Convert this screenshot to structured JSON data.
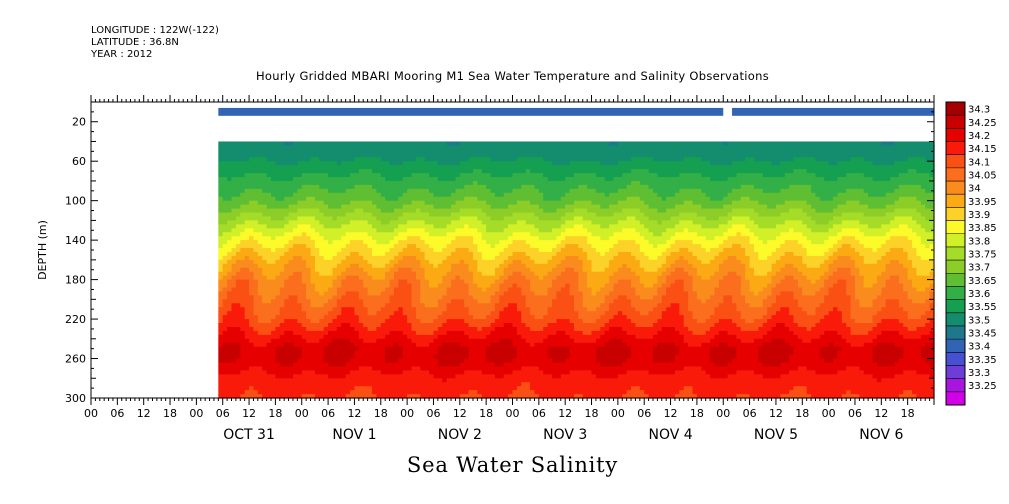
{
  "header": {
    "longitude": "LONGITUDE : 122W(-122)",
    "latitude": "LATITUDE : 36.8N",
    "year": "YEAR : 2012"
  },
  "footer": {
    "variable": "Sea Water Salinity"
  },
  "colors": {
    "missing": "#ffffff",
    "surface_band": "#3b5fc9"
  },
  "chart_data": {
    "type": "heatmap",
    "title": "Hourly Gridded MBARI Mooring M1 Sea Water Temperature and Salinity Observations",
    "xlabel": "",
    "ylabel": "DEPTH (m)",
    "x_range": [
      "2012-10-30 00:00",
      "2012-11-06 23:00"
    ],
    "y_range": [
      300,
      0
    ],
    "y_ticks": [
      20,
      60,
      100,
      140,
      180,
      220,
      260,
      300
    ],
    "hour_ticks": [
      "00",
      "06",
      "12",
      "18",
      "00",
      "06",
      "12",
      "18",
      "00",
      "06",
      "12",
      "18",
      "00",
      "06",
      "12",
      "18",
      "00",
      "06",
      "12",
      "18",
      "00",
      "06",
      "12",
      "18",
      "00",
      "06",
      "12",
      "18",
      "00",
      "06",
      "12",
      "18"
    ],
    "day_labels": [
      "OCT 31",
      "NOV  1",
      "NOV  2",
      "NOV  3",
      "NOV  4",
      "NOV  5",
      "NOV  6"
    ],
    "data_start": "2012-10-31 05:00",
    "data_end": "2012-11-06 23:00",
    "surface_depth_range": [
      6,
      14
    ],
    "surface_value": 33.4,
    "surface_gap": [
      "2012-11-05 00:00",
      "2012-11-05 02:00"
    ],
    "missing_depth_range": [
      14,
      40
    ],
    "profile_depths": [
      40,
      60,
      80,
      100,
      120,
      140,
      160,
      180,
      200,
      220,
      230,
      240,
      250,
      260,
      270,
      280,
      300
    ],
    "profile_values": [
      33.5,
      33.55,
      33.62,
      33.68,
      33.78,
      33.88,
      33.96,
      34.03,
      34.08,
      34.13,
      34.17,
      34.21,
      34.25,
      34.25,
      34.22,
      34.18,
      34.15
    ],
    "colorbar": {
      "levels": [
        "34.3",
        "34.25",
        "34.2",
        "34.15",
        "34.1",
        "34.05",
        "34",
        "33.95",
        "33.9",
        "33.85",
        "33.8",
        "33.75",
        "33.7",
        "33.65",
        "33.6",
        "33.55",
        "33.5",
        "33.45",
        "33.4",
        "33.35",
        "33.3",
        "33.25"
      ],
      "colors": [
        "#a50000",
        "#c80000",
        "#e60000",
        "#fa1a0a",
        "#fa5014",
        "#fa6e1e",
        "#fa8c1e",
        "#fcaa14",
        "#fcd228",
        "#fcfa28",
        "#d2f028",
        "#a5dc28",
        "#8ccd28",
        "#5fbe32",
        "#32af46",
        "#14a050",
        "#148c6e",
        "#1e788c",
        "#3264b4",
        "#4650d2",
        "#6e3cd7",
        "#aa14e1",
        "#d200e6"
      ]
    }
  }
}
